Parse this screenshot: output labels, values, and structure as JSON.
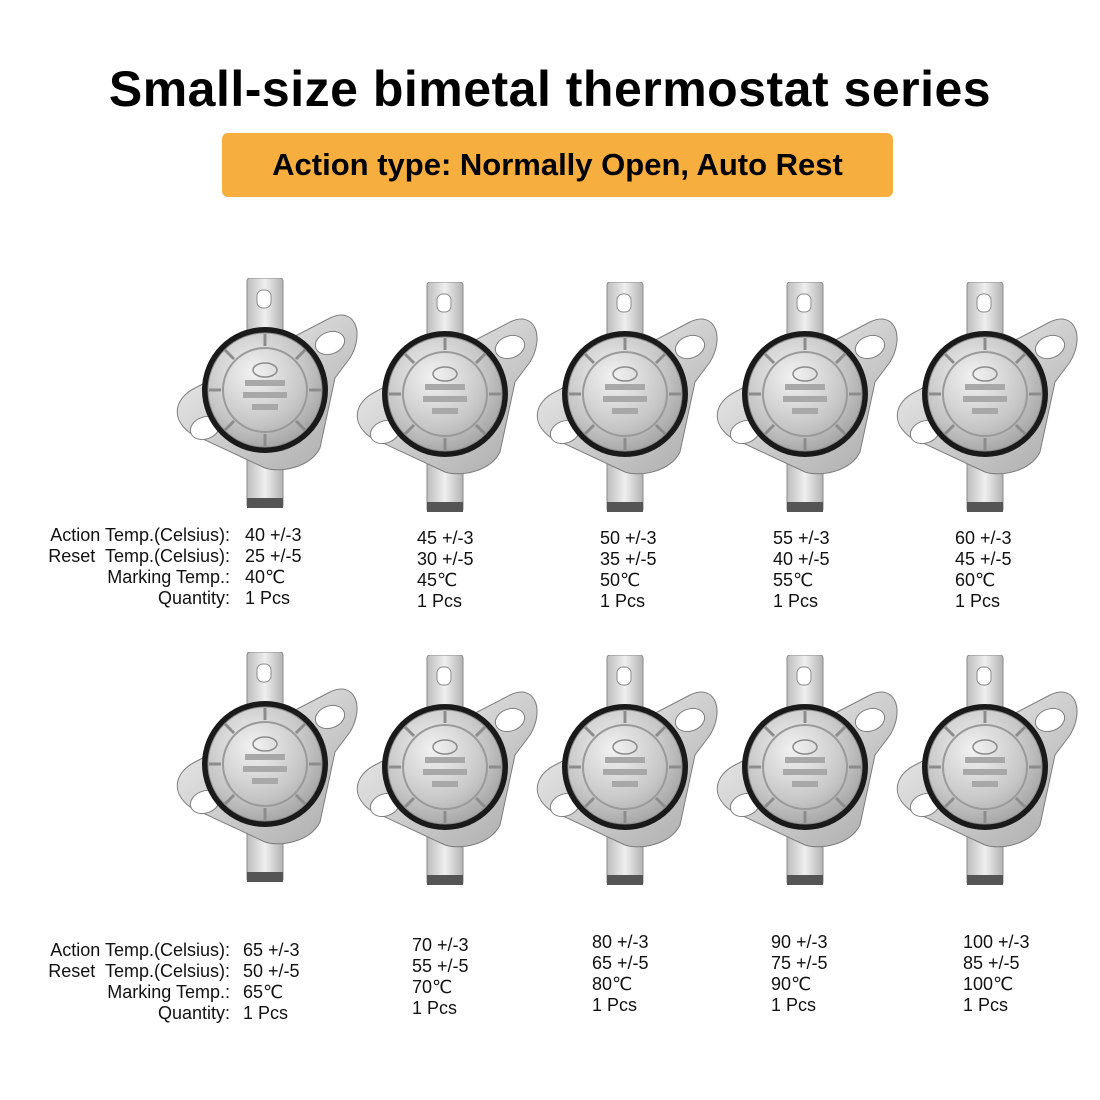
{
  "title": "Small-size bimetal thermostat series",
  "badge": "Action type: Normally Open, Auto Rest",
  "row_labels": {
    "action": "Action Temp.(Celsius):",
    "reset": "Reset  Temp.(Celsius):",
    "marking": "Marking Temp.:",
    "quantity": "Quantity:"
  },
  "colors": {
    "badge": "#f6ae3f",
    "metal": "#c9c9c9",
    "ring": "#1a1a1a"
  },
  "icon": "bimetal-thermostat-ksd301",
  "items": [
    {
      "action": "40 +/-3",
      "reset": "25 +/-5",
      "marking": "40℃",
      "quantity": "1 Pcs"
    },
    {
      "action": "45 +/-3",
      "reset": "30 +/-5",
      "marking": "45℃",
      "quantity": "1 Pcs"
    },
    {
      "action": "50 +/-3",
      "reset": "35 +/-5",
      "marking": "50℃",
      "quantity": "1 Pcs"
    },
    {
      "action": "55 +/-3",
      "reset": "40 +/-5",
      "marking": "55℃",
      "quantity": "1 Pcs"
    },
    {
      "action": "60 +/-3",
      "reset": "45 +/-5",
      "marking": "60℃",
      "quantity": "1 Pcs"
    },
    {
      "action": "65 +/-3",
      "reset": "50 +/-5",
      "marking": "65℃",
      "quantity": "1 Pcs"
    },
    {
      "action": "70 +/-3",
      "reset": "55 +/-5",
      "marking": "70℃",
      "quantity": "1 Pcs"
    },
    {
      "action": "80 +/-3",
      "reset": "65 +/-5",
      "marking": "80℃",
      "quantity": "1 Pcs"
    },
    {
      "action": "90 +/-3",
      "reset": "75 +/-5",
      "marking": "90℃",
      "quantity": "1 Pcs"
    },
    {
      "action": "100 +/-3",
      "reset": "85 +/-5",
      "marking": "100℃",
      "quantity": "1 Pcs"
    }
  ]
}
